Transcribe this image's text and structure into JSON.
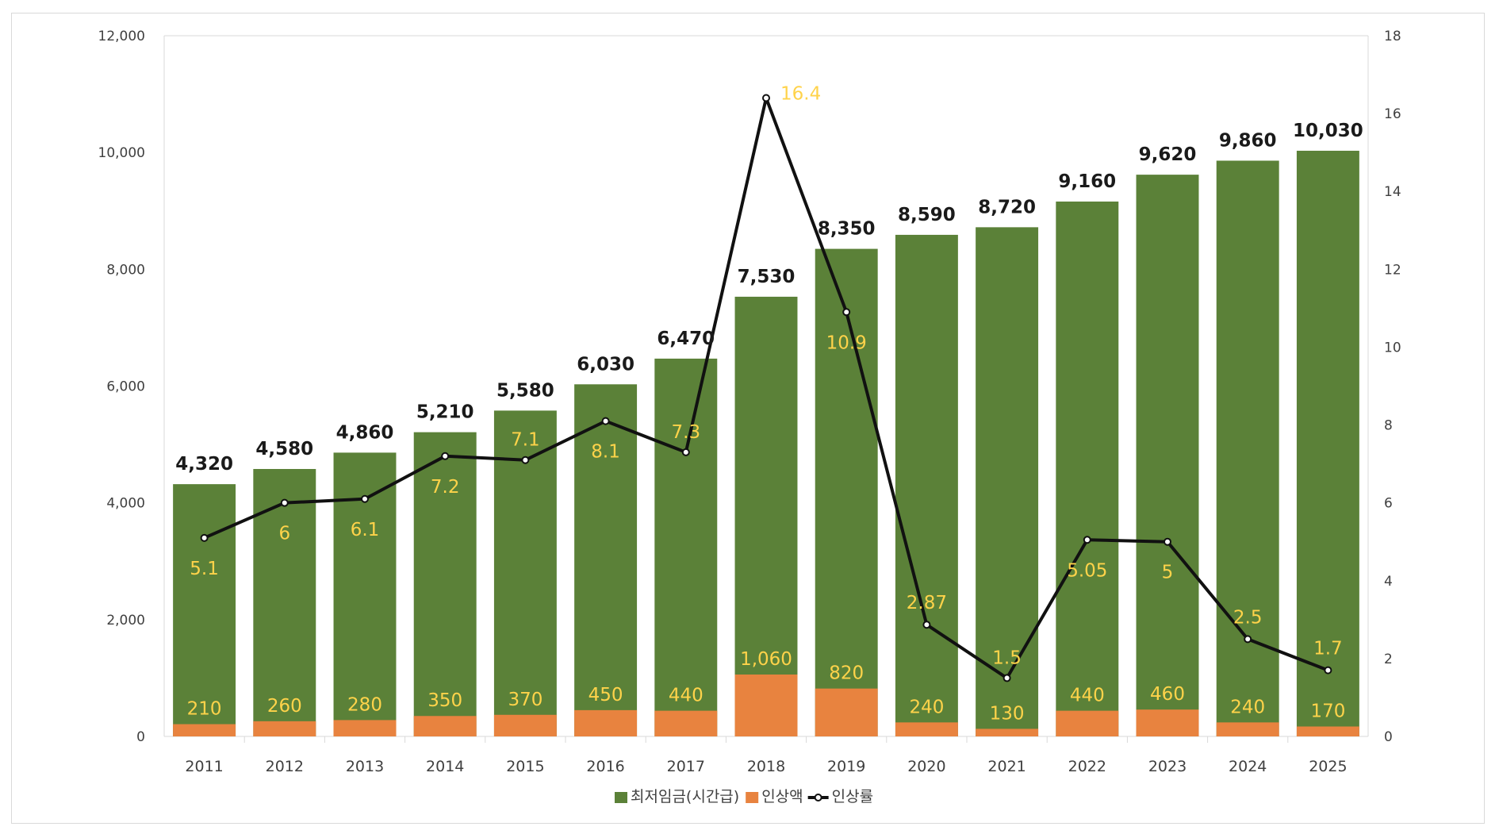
{
  "chart_data": {
    "type": "bar",
    "categories": [
      "2011",
      "2012",
      "2013",
      "2014",
      "2015",
      "2016",
      "2017",
      "2018",
      "2019",
      "2020",
      "2021",
      "2022",
      "2023",
      "2024",
      "2025"
    ],
    "series": [
      {
        "name": "최저임금(시간급)",
        "kind": "bar",
        "axis": "left",
        "color": "#5b8138",
        "values": [
          4320,
          4580,
          4860,
          5210,
          5580,
          6030,
          6470,
          7530,
          8350,
          8590,
          8720,
          9160,
          9620,
          9860,
          10030
        ],
        "labels": [
          "4,320",
          "4,580",
          "4,860",
          "5,210",
          "5,580",
          "6,030",
          "6,470",
          "7,530",
          "8,350",
          "8,590",
          "8,720",
          "9,160",
          "9,620",
          "9,860",
          "10,030"
        ]
      },
      {
        "name": "인상액",
        "kind": "bar",
        "axis": "left",
        "color": "#e8833f",
        "values": [
          210,
          260,
          280,
          350,
          370,
          450,
          440,
          1060,
          820,
          240,
          130,
          440,
          460,
          240,
          170
        ],
        "labels": [
          "210",
          "260",
          "280",
          "350",
          "370",
          "450",
          "440",
          "1,060",
          "820",
          "240",
          "130",
          "440",
          "460",
          "240",
          "170"
        ]
      },
      {
        "name": "인상률",
        "kind": "line",
        "axis": "right",
        "color": "#111111",
        "values": [
          5.1,
          6,
          6.1,
          7.2,
          7.1,
          8.1,
          7.3,
          16.4,
          10.9,
          2.87,
          1.5,
          5.05,
          5,
          2.5,
          1.7
        ],
        "labels": [
          "5.1",
          "6",
          "6.1",
          "7.2",
          "7.1",
          "8.1",
          "7.3",
          "16.4",
          "10.9",
          "2.87",
          "1.5",
          "5.05",
          "5",
          "2.5",
          "1.7"
        ]
      }
    ],
    "y_left": {
      "range": [
        0,
        12000
      ],
      "ticks": [
        0,
        2000,
        4000,
        6000,
        8000,
        10000,
        12000
      ],
      "tick_labels": [
        "0",
        "2,000",
        "4,000",
        "6,000",
        "8,000",
        "10,000",
        "12,000"
      ]
    },
    "y_right": {
      "range": [
        0,
        18
      ],
      "ticks": [
        0,
        2,
        4,
        6,
        8,
        10,
        12,
        14,
        16,
        18
      ],
      "tick_labels": [
        "0",
        "2",
        "4",
        "6",
        "8",
        "10",
        "12",
        "14",
        "16",
        "18"
      ]
    },
    "label_color": "#ffd34a",
    "grid": false,
    "legend_position": "bottom"
  }
}
